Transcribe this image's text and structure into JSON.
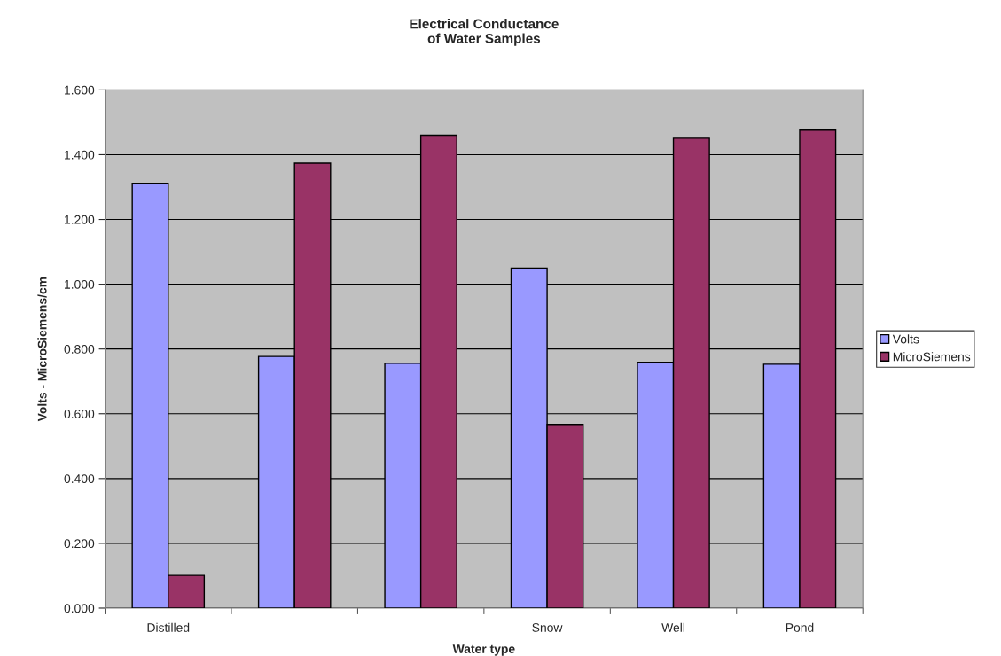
{
  "chart_data": {
    "type": "bar",
    "title": "Electrical Conductance\nof Water Samples",
    "xlabel": "Water type",
    "ylabel": "Volts - MicroSiemens/cm",
    "categories": [
      "Distilled",
      null,
      null,
      "Snow",
      "Well",
      "Pond"
    ],
    "series": [
      {
        "name": "Volts",
        "color": "#9999ff",
        "values": [
          1.312,
          0.777,
          0.756,
          1.05,
          0.759,
          0.753
        ]
      },
      {
        "name": "MicroSiemens",
        "color": "#993366",
        "values": [
          0.101,
          1.374,
          1.46,
          0.567,
          1.451,
          1.476
        ]
      }
    ],
    "ylim": [
      0,
      1.6
    ],
    "yticks": [
      {
        "value": 0,
        "label": "0.000"
      },
      {
        "value": 0.2,
        "label": "0.200"
      },
      {
        "value": 0.4,
        "label": "0.400"
      },
      {
        "value": 0.6,
        "label": "0.600"
      },
      {
        "value": 0.8,
        "label": "0.800"
      },
      {
        "value": 1.0,
        "label": "1.000"
      },
      {
        "value": 1.2,
        "label": "1.200"
      },
      {
        "value": 1.4,
        "label": "1.400"
      },
      {
        "value": 1.6,
        "label": "1.600"
      }
    ],
    "grid": "y",
    "legend": "right"
  }
}
